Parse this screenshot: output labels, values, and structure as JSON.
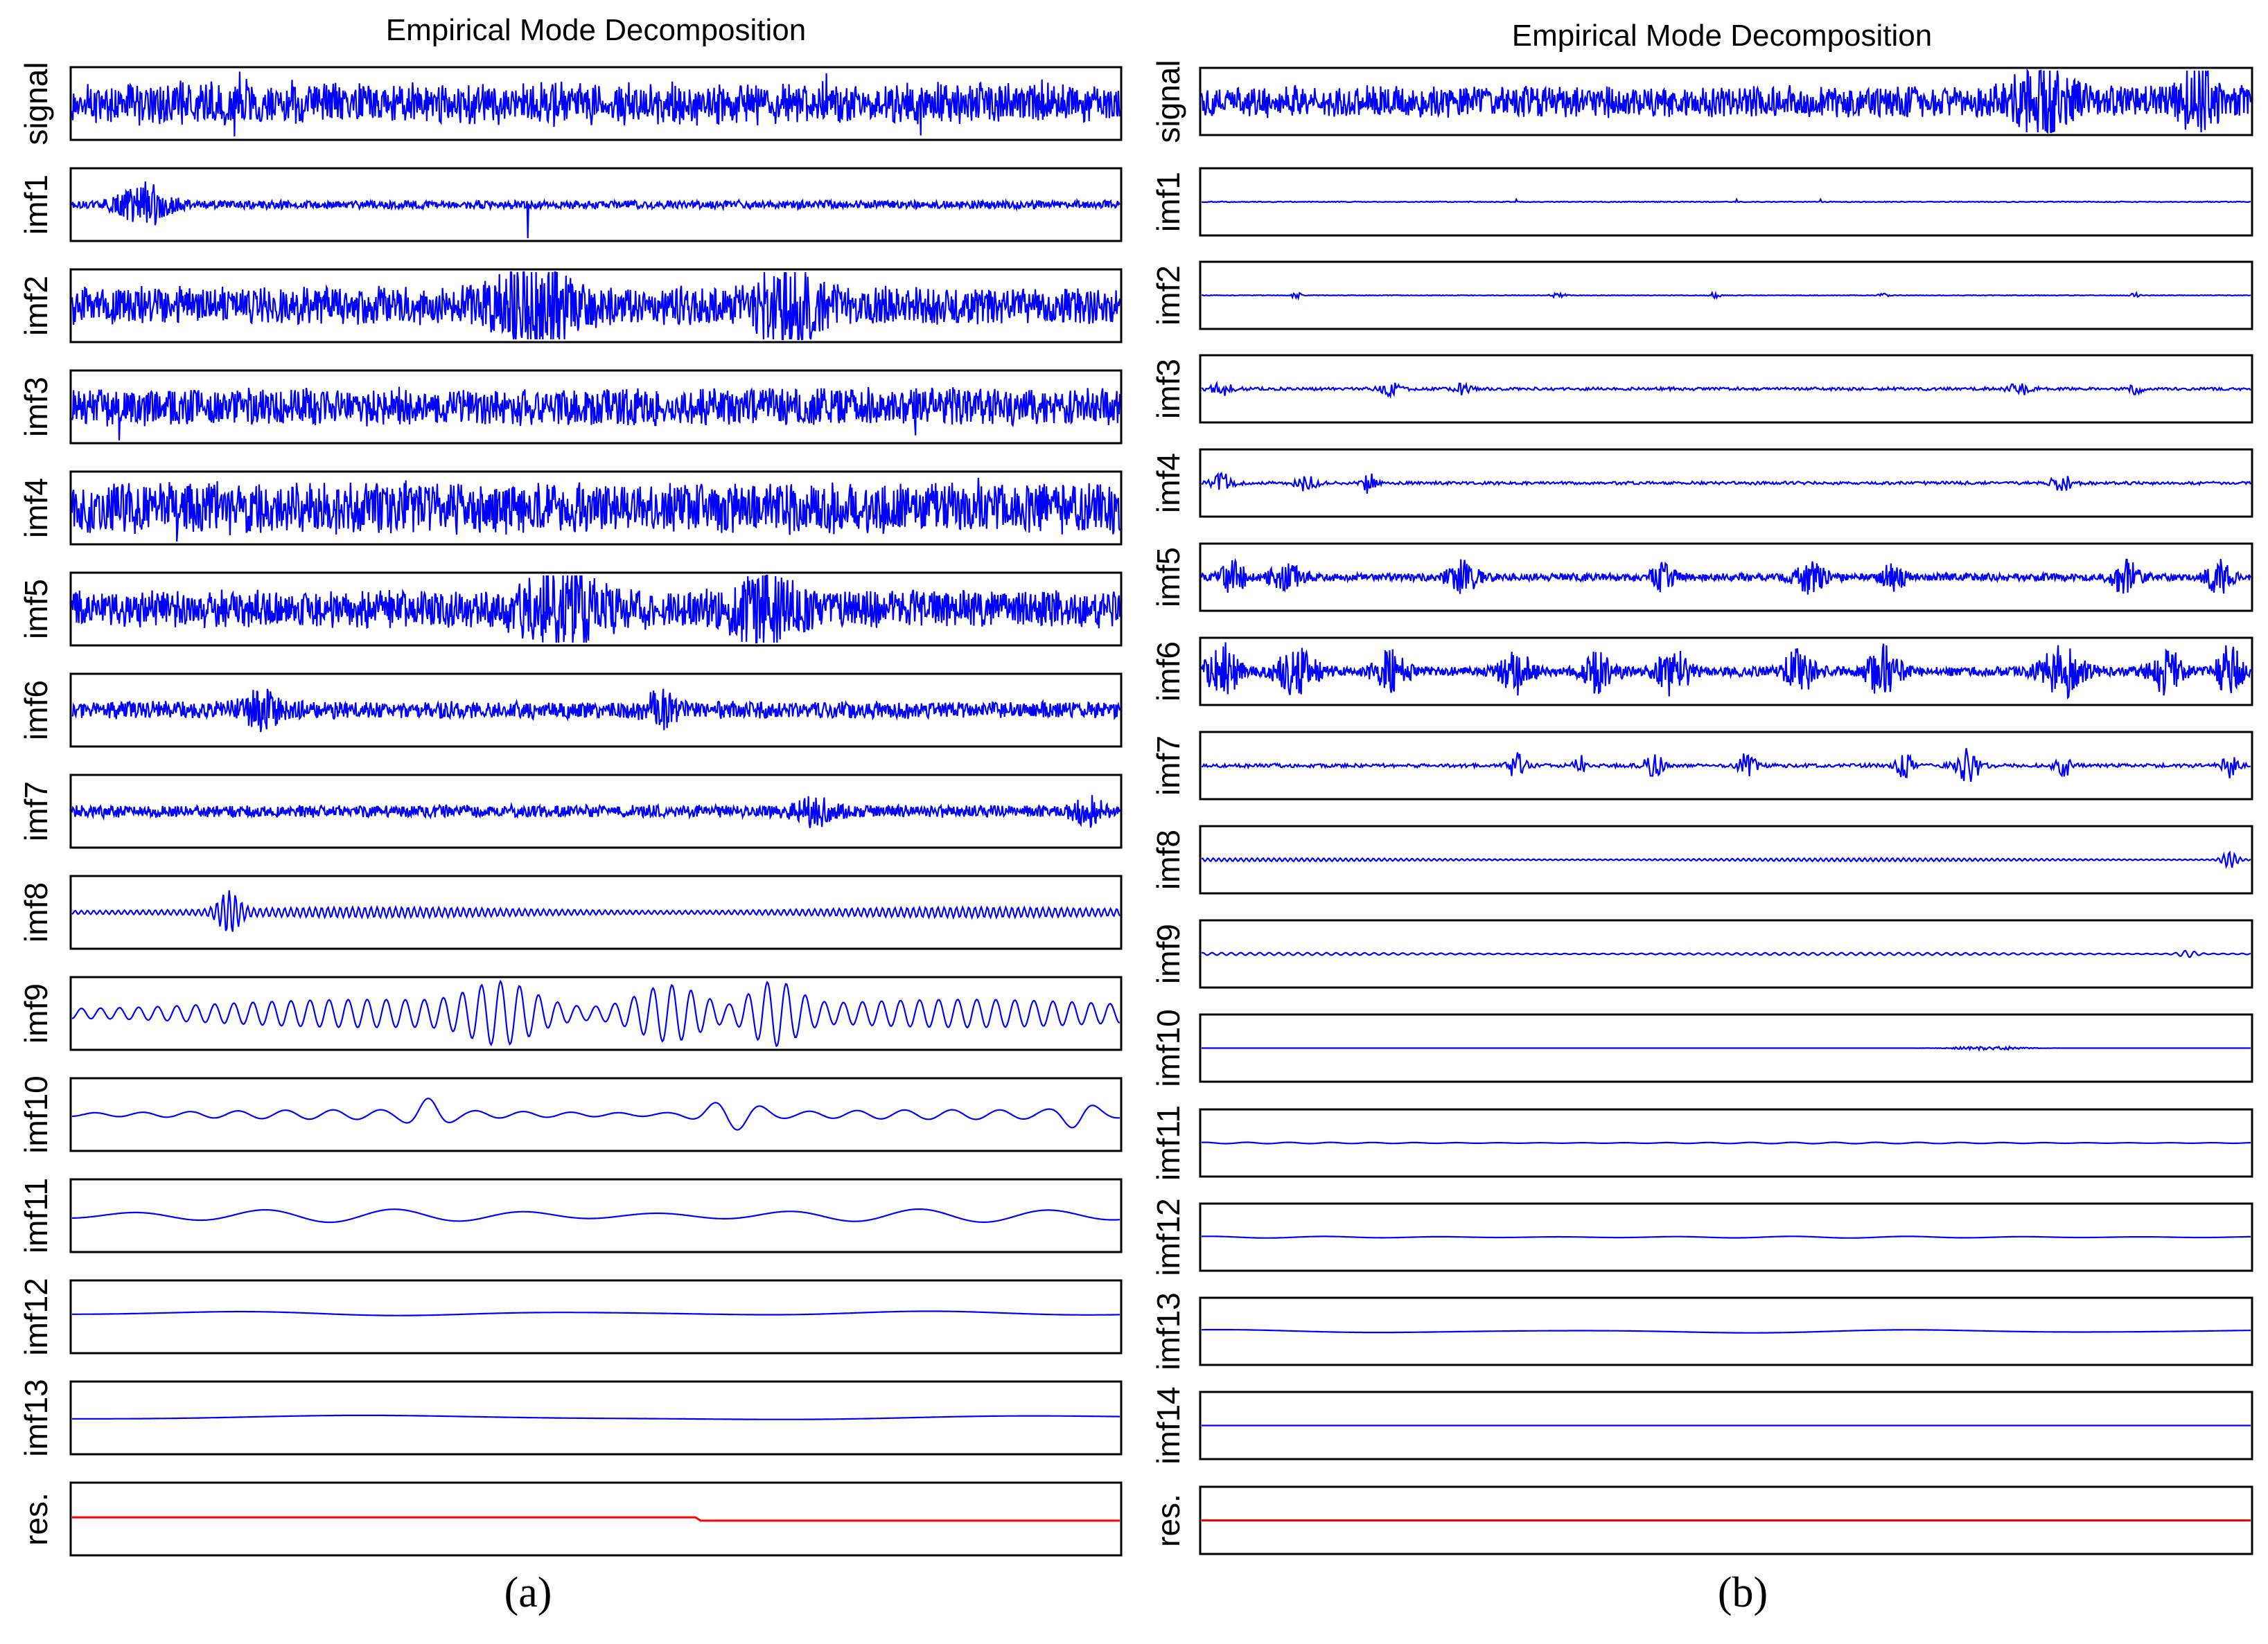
{
  "chart_data": [
    {
      "type": "line",
      "title": "Empirical Mode Decomposition",
      "caption": "(a)",
      "grid": false,
      "series": [
        {
          "name": "signal",
          "color": "#0000ff",
          "noise_amp": 0.55,
          "osc_amp": 0.15,
          "osc_cycles": 0,
          "spikes": [
            [
              0.16,
              0.95
            ],
            [
              0.155,
              -0.98
            ],
            [
              0.81,
              -0.95
            ],
            [
              0.72,
              0.9
            ]
          ]
        },
        {
          "name": "imf1",
          "color": "#0000ff",
          "noise_amp": 0.12,
          "osc_amp": 0,
          "osc_cycles": 0,
          "bursts": [
            [
              0.07,
              0.025,
              0.6
            ]
          ],
          "spikes": [
            [
              0.435,
              1.0
            ],
            [
              0.435,
              -1.0
            ]
          ]
        },
        {
          "name": "imf2",
          "color": "#0000ff",
          "noise_amp": 0.55,
          "osc_amp": 0,
          "osc_cycles": 0,
          "bursts": [
            [
              0.44,
              0.04,
              0.9
            ],
            [
              0.68,
              0.03,
              0.95
            ]
          ]
        },
        {
          "name": "imf3",
          "color": "#0000ff",
          "noise_amp": 0.55,
          "osc_amp": 0,
          "osc_cycles": 0,
          "spikes": [
            [
              0.045,
              1.0
            ],
            [
              0.045,
              -1.0
            ],
            [
              0.805,
              0.85
            ],
            [
              0.805,
              -0.85
            ]
          ]
        },
        {
          "name": "imf4",
          "color": "#0000ff",
          "noise_amp": 0.75,
          "osc_amp": 0,
          "osc_cycles": 0,
          "spikes": [
            [
              0.1,
              1.0
            ],
            [
              0.1,
              -1.0
            ],
            [
              0.865,
              0.9
            ]
          ]
        },
        {
          "name": "imf5",
          "color": "#0000ff",
          "noise_amp": 0.55,
          "osc_amp": 0,
          "osc_cycles": 0,
          "bursts": [
            [
              0.47,
              0.04,
              0.85
            ],
            [
              0.66,
              0.03,
              0.8
            ]
          ]
        },
        {
          "name": "imf6",
          "color": "#0000ff",
          "noise_amp": 0.25,
          "osc_amp": 0,
          "osc_cycles": 0,
          "bursts": [
            [
              0.18,
              0.02,
              0.45
            ],
            [
              0.56,
              0.015,
              0.45
            ]
          ]
        },
        {
          "name": "imf7",
          "color": "#0000ff",
          "noise_amp": 0.18,
          "osc_amp": 0,
          "osc_cycles": 0,
          "bursts": [
            [
              0.71,
              0.02,
              0.35
            ],
            [
              0.97,
              0.015,
              0.35
            ]
          ]
        },
        {
          "name": "imf8",
          "color": "#0000ff",
          "noise_amp": 0.0,
          "osc_amp": 0.14,
          "osc_cycles": 170,
          "bursts": [
            [
              0.15,
              0.012,
              0.55
            ]
          ]
        },
        {
          "name": "imf9",
          "color": "#0000ff",
          "noise_amp": 0.0,
          "osc_amp": 0.38,
          "osc_cycles": 55,
          "bursts": [
            [
              0.41,
              0.04,
              0.65
            ],
            [
              0.57,
              0.04,
              0.7
            ],
            [
              0.67,
              0.03,
              0.75
            ]
          ]
        },
        {
          "name": "imf10",
          "color": "#0000ff",
          "noise_amp": 0.0,
          "osc_amp": 0.13,
          "osc_cycles": 22,
          "bursts": [
            [
              0.34,
              0.02,
              0.35
            ],
            [
              0.63,
              0.03,
              0.4
            ],
            [
              0.96,
              0.02,
              0.3
            ]
          ]
        },
        {
          "name": "imf11",
          "color": "#0000ff",
          "noise_amp": 0.0,
          "osc_amp": 0.18,
          "osc_cycles": 8,
          "offset": 0.0
        },
        {
          "name": "imf12",
          "color": "#0000ff",
          "noise_amp": 0.0,
          "osc_amp": 0.06,
          "osc_cycles": 3,
          "offset": 0.1
        },
        {
          "name": "imf13",
          "color": "#0000ff",
          "noise_amp": 0.0,
          "osc_amp": 0.07,
          "osc_cycles": 1.5,
          "offset": 0.0
        },
        {
          "name": "res.",
          "color": "#ff0000",
          "step": [
            0.6,
            0.05,
            -0.05
          ]
        }
      ]
    },
    {
      "type": "line",
      "title": "Empirical Mode Decomposition",
      "caption": "(b)",
      "grid": false,
      "series": [
        {
          "name": "signal",
          "color": "#0000ff",
          "noise_amp": 0.5,
          "osc_amp": 0,
          "osc_cycles": 0,
          "bursts": [
            [
              0.8,
              0.03,
              0.85
            ],
            [
              0.95,
              0.02,
              0.8
            ]
          ]
        },
        {
          "name": "imf1",
          "color": "#0000ff",
          "noise_amp": 0.015,
          "osc_amp": 0,
          "osc_cycles": 0,
          "spikes": [
            [
              0.3,
              0.08
            ],
            [
              0.51,
              0.08
            ],
            [
              0.59,
              0.08
            ]
          ]
        },
        {
          "name": "imf2",
          "color": "#0000ff",
          "noise_amp": 0.01,
          "osc_amp": 0,
          "osc_cycles": 0,
          "bursts": [
            [
              0.09,
              0.004,
              0.18
            ],
            [
              0.34,
              0.006,
              0.12
            ],
            [
              0.49,
              0.005,
              0.12
            ],
            [
              0.65,
              0.004,
              0.12
            ],
            [
              0.89,
              0.004,
              0.12
            ]
          ]
        },
        {
          "name": "imf3",
          "color": "#0000ff",
          "noise_amp": 0.05,
          "osc_amp": 0,
          "osc_cycles": 0,
          "bursts": [
            [
              0.02,
              0.01,
              0.2
            ],
            [
              0.18,
              0.01,
              0.2
            ],
            [
              0.25,
              0.008,
              0.2
            ],
            [
              0.78,
              0.01,
              0.2
            ],
            [
              0.89,
              0.006,
              0.2
            ]
          ]
        },
        {
          "name": "imf4",
          "color": "#0000ff",
          "noise_amp": 0.05,
          "osc_amp": 0,
          "osc_cycles": 0,
          "bursts": [
            [
              0.02,
              0.01,
              0.3
            ],
            [
              0.1,
              0.01,
              0.25
            ],
            [
              0.16,
              0.006,
              0.35
            ],
            [
              0.82,
              0.01,
              0.25
            ]
          ]
        },
        {
          "name": "imf5",
          "color": "#0000ff",
          "noise_amp": 0.12,
          "osc_amp": 0,
          "osc_cycles": 0,
          "bursts": [
            [
              0.03,
              0.012,
              0.5
            ],
            [
              0.08,
              0.015,
              0.45
            ],
            [
              0.25,
              0.015,
              0.5
            ],
            [
              0.44,
              0.01,
              0.45
            ],
            [
              0.58,
              0.015,
              0.45
            ],
            [
              0.66,
              0.01,
              0.5
            ],
            [
              0.88,
              0.012,
              0.55
            ],
            [
              0.97,
              0.012,
              0.5
            ]
          ]
        },
        {
          "name": "imf6",
          "color": "#0000ff",
          "noise_amp": 0.15,
          "osc_amp": 0,
          "osc_cycles": 0,
          "bursts": [
            [
              0.02,
              0.015,
              0.85
            ],
            [
              0.09,
              0.02,
              0.7
            ],
            [
              0.18,
              0.015,
              0.65
            ],
            [
              0.3,
              0.015,
              0.7
            ],
            [
              0.38,
              0.015,
              0.7
            ],
            [
              0.45,
              0.015,
              0.75
            ],
            [
              0.57,
              0.015,
              0.7
            ],
            [
              0.65,
              0.015,
              0.8
            ],
            [
              0.82,
              0.02,
              0.8
            ],
            [
              0.92,
              0.015,
              0.7
            ],
            [
              0.98,
              0.012,
              0.8
            ]
          ]
        },
        {
          "name": "imf7",
          "color": "#0000ff",
          "noise_amp": 0.06,
          "osc_amp": 0,
          "osc_cycles": 0,
          "bursts": [
            [
              0.3,
              0.008,
              0.45
            ],
            [
              0.36,
              0.006,
              0.35
            ],
            [
              0.43,
              0.01,
              0.4
            ],
            [
              0.52,
              0.008,
              0.45
            ],
            [
              0.67,
              0.008,
              0.4
            ],
            [
              0.73,
              0.012,
              0.55
            ],
            [
              0.82,
              0.008,
              0.45
            ],
            [
              0.98,
              0.008,
              0.4
            ]
          ]
        },
        {
          "name": "imf8",
          "color": "#0000ff",
          "noise_amp": 0.0,
          "osc_amp": 0.05,
          "osc_cycles": 190,
          "bursts": [
            [
              0.98,
              0.008,
              0.25
            ]
          ]
        },
        {
          "name": "imf9",
          "color": "#0000ff",
          "noise_amp": 0.0,
          "osc_amp": 0.04,
          "osc_cycles": 110,
          "bursts": [
            [
              0.94,
              0.01,
              0.1
            ]
          ]
        },
        {
          "name": "imf10",
          "color": "#0000ff",
          "noise_amp": 0.0,
          "osc_amp": 0.0,
          "osc_cycles": 0,
          "bursts": [
            [
              0.75,
              0.035,
              0.07
            ]
          ]
        },
        {
          "name": "imf11",
          "color": "#0000ff",
          "noise_amp": 0.0,
          "osc_amp": 0.02,
          "osc_cycles": 25
        },
        {
          "name": "imf12",
          "color": "#0000ff",
          "noise_amp": 0.0,
          "osc_amp": 0.025,
          "osc_cycles": 9
        },
        {
          "name": "imf13",
          "color": "#0000ff",
          "noise_amp": 0.0,
          "osc_amp": 0.05,
          "osc_cycles": 3
        },
        {
          "name": "imf14",
          "color": "#0000ff",
          "noise_amp": 0.0,
          "osc_amp": 0.0,
          "osc_cycles": 0
        },
        {
          "name": "res.",
          "color": "#ff0000",
          "step": [
            1.0,
            0.0,
            0.0
          ]
        }
      ]
    }
  ]
}
